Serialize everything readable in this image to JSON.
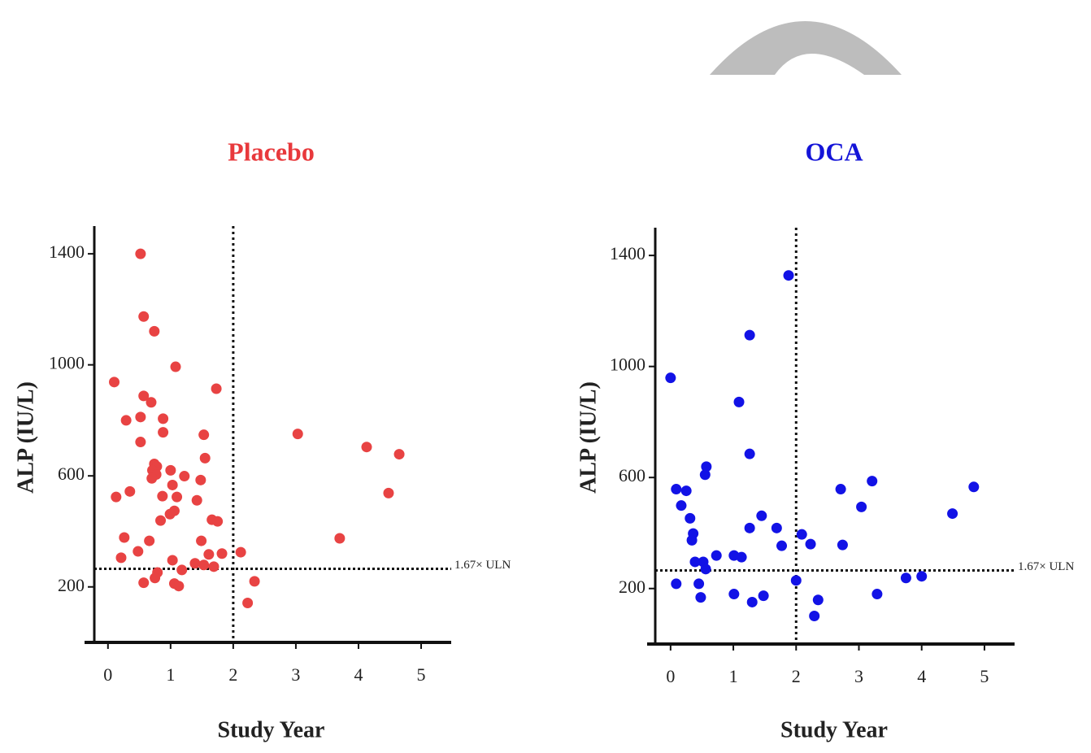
{
  "chart_data": [
    {
      "type": "scatter",
      "title": "Placebo",
      "title_color": "#e8393c",
      "color": "#e84343",
      "x_label": "Study Year",
      "y_label": "ALP (IU/L)",
      "x": [
        0.52,
        0.57,
        0.74,
        1.08,
        0.1,
        0.57,
        0.69,
        1.73,
        0.29,
        0.52,
        0.88,
        0.88,
        0.52,
        1.53,
        3.03,
        4.13,
        4.65,
        1.55,
        0.74,
        0.78,
        0.71,
        0.77,
        1.0,
        1.22,
        0.7,
        0.13,
        0.35,
        1.03,
        1.48,
        0.87,
        1.1,
        1.42,
        4.48,
        1.06,
        0.99,
        1.66,
        1.75,
        0.84,
        0.26,
        0.66,
        1.49,
        3.7,
        0.48,
        2.12,
        1.82,
        1.61,
        0.21,
        1.03,
        1.39,
        1.53,
        1.69,
        0.79,
        1.18,
        0.75,
        0.57,
        1.06,
        1.13,
        2.34,
        2.23
      ],
      "values": [
        1400,
        1174,
        1121,
        993,
        938,
        888,
        865,
        914,
        800,
        812,
        806,
        757,
        722,
        748,
        751,
        704,
        678,
        664,
        643,
        634,
        620,
        605,
        620,
        599,
        591,
        524,
        544,
        567,
        585,
        527,
        524,
        512,
        538,
        474,
        462,
        442,
        436,
        439,
        378,
        366,
        366,
        375,
        328,
        325,
        320,
        317,
        305,
        296,
        285,
        279,
        273,
        252,
        261,
        232,
        215,
        212,
        203,
        220,
        142
      ],
      "xlim": [
        -0.27,
        5.48
      ],
      "ylim": [
        0,
        1500
      ],
      "xticks": [
        0,
        1,
        2,
        3,
        4,
        5
      ],
      "yticks": [
        200,
        600,
        1000,
        1400
      ],
      "vline": 2,
      "hline": 265,
      "hline_label": "1.67× ULN"
    },
    {
      "type": "scatter",
      "title": "OCA",
      "title_color": "#1414d8",
      "color": "#1212e6",
      "x_label": "Study Year",
      "y_label": "ALP (IU/L)",
      "x": [
        1.88,
        1.26,
        0,
        1.09,
        1.26,
        0.57,
        0.55,
        0.09,
        0.25,
        2.71,
        4.83,
        3.21,
        0.17,
        3.04,
        0.31,
        4.49,
        1.45,
        1.26,
        1.69,
        0.36,
        2.09,
        0.34,
        2.23,
        2.74,
        1.77,
        0.73,
        1.01,
        1.13,
        0.39,
        0.52,
        0.56,
        3.75,
        4.0,
        2.0,
        0.09,
        0.45,
        1.01,
        1.48,
        0.48,
        1.3,
        3.29,
        2.35,
        2.29
      ],
      "values": [
        1328,
        1113,
        959,
        872,
        685,
        639,
        610,
        558,
        552,
        558,
        566,
        587,
        499,
        494,
        453,
        470,
        462,
        418,
        418,
        398,
        395,
        374,
        360,
        357,
        354,
        319,
        319,
        313,
        296,
        296,
        270,
        238,
        244,
        229,
        217,
        217,
        180,
        174,
        168,
        151,
        180,
        159,
        101
      ],
      "xlim": [
        -0.27,
        5.48
      ],
      "ylim": [
        0,
        1500
      ],
      "xticks": [
        0,
        1,
        2,
        3,
        4,
        5
      ],
      "yticks": [
        200,
        600,
        1000,
        1400
      ],
      "vline": 2,
      "hline": 265,
      "hline_label": "1.67× ULN"
    }
  ]
}
